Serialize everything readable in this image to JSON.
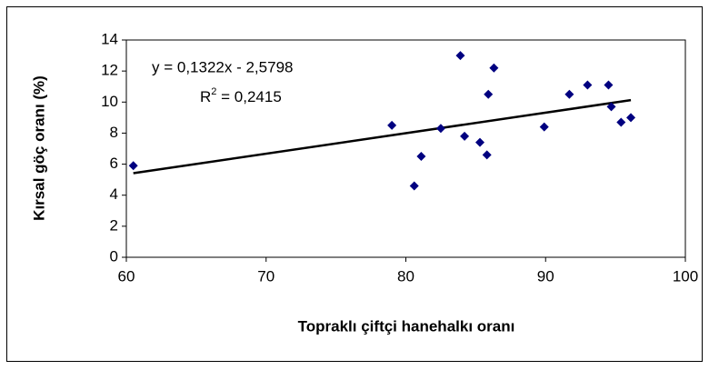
{
  "chart_data": {
    "type": "scatter",
    "xlabel": "Topraklı çiftçi hanehalkı oranı",
    "ylabel": "Kırsal göç oranı (%)",
    "equation": "y = 0,1322x - 2,5798",
    "r2_label": "R",
    "r2_sup": "2",
    "r2_value": " = 0,2415",
    "trendline": {
      "slope": 0.1322,
      "intercept": -2.5798
    },
    "color": "#000080",
    "grid": false,
    "x": [
      60.5,
      79.0,
      80.6,
      81.1,
      82.5,
      83.9,
      84.2,
      85.3,
      85.8,
      85.9,
      86.3,
      89.9,
      91.7,
      93.0,
      94.5,
      94.7,
      95.4,
      96.1
    ],
    "values": [
      5.9,
      8.5,
      4.6,
      6.5,
      8.3,
      13.0,
      7.8,
      7.4,
      6.6,
      10.5,
      12.2,
      8.4,
      10.5,
      11.1,
      11.1,
      9.7,
      8.7,
      9.0
    ],
    "xlim": [
      60,
      100
    ],
    "xticks": [
      60,
      70,
      80,
      90,
      100
    ],
    "ylim": [
      0,
      14
    ],
    "yticks": [
      0,
      2,
      4,
      6,
      8,
      10,
      12,
      14
    ]
  }
}
